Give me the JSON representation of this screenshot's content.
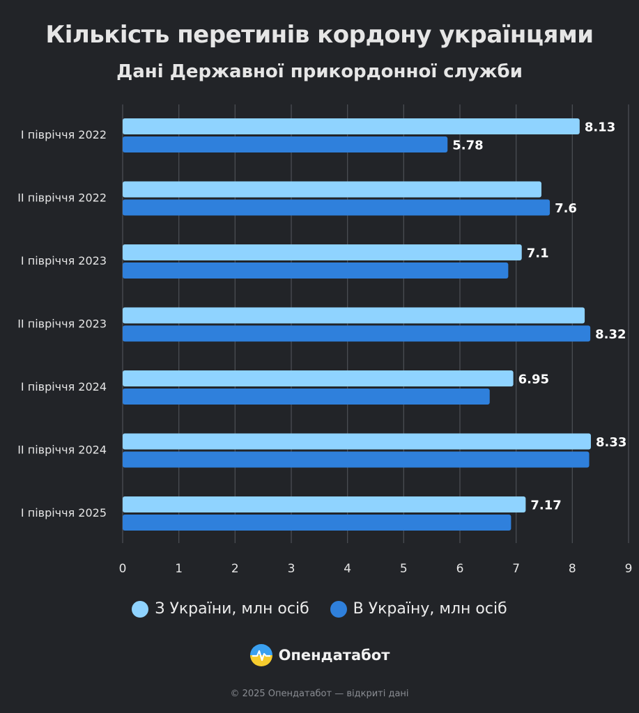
{
  "title": "Кількість перетинів кордону українцями",
  "subtitle": "Дані Державної прикордонної служби",
  "chart_data": {
    "type": "bar",
    "orientation": "horizontal",
    "categories": [
      "I півріччя 2022",
      "II півріччя 2022",
      "I півріччя 2023",
      "II півріччя 2023",
      "I півріччя 2024",
      "II півріччя 2024",
      "I півріччя 2025"
    ],
    "series": [
      {
        "name": "З України, млн осіб",
        "color": "#8fd3ff",
        "values": [
          8.13,
          7.45,
          7.1,
          8.22,
          6.95,
          8.33,
          7.17
        ],
        "labels": [
          "8.13",
          "",
          "7.1",
          "",
          "6.95",
          "8.33",
          "7.17"
        ]
      },
      {
        "name": "В Україну, млн осіб",
        "color": "#2f80dc",
        "values": [
          5.78,
          7.6,
          6.86,
          8.32,
          6.53,
          8.3,
          6.91
        ],
        "labels": [
          "5.78",
          "7.6",
          "",
          "8.32",
          "",
          "",
          ""
        ]
      }
    ],
    "xlim": [
      0,
      9
    ],
    "xticks": [
      "0",
      "1",
      "2",
      "3",
      "4",
      "5",
      "6",
      "7",
      "8",
      "9"
    ],
    "grid": true,
    "legend_position": "bottom"
  },
  "brand": {
    "name": "Опендатабот",
    "logo_icon": "sun-logo-icon"
  },
  "footer": "© 2025 Опендатабот — відкриті дані"
}
